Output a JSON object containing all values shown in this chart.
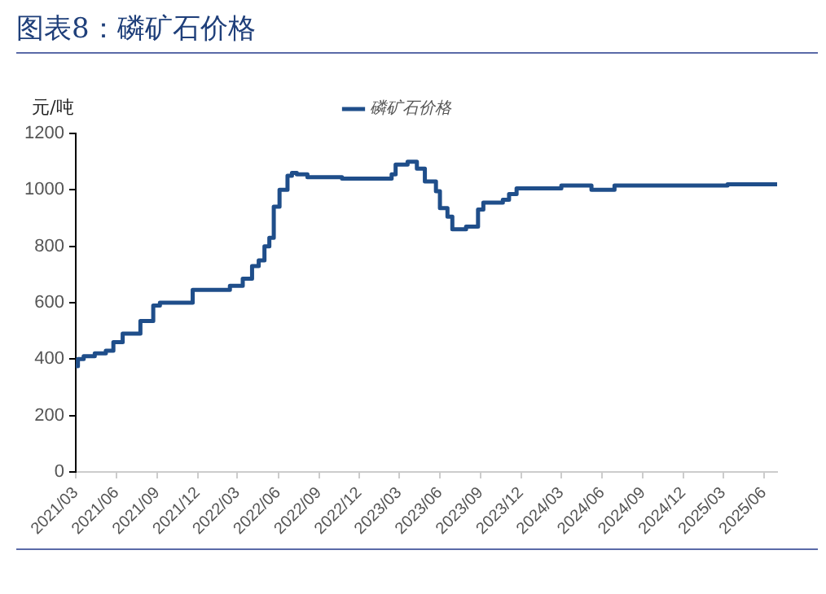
{
  "chart_data": {
    "type": "step",
    "title": "图表8：磷矿石价格",
    "ylabel": "元/吨",
    "legend": "top",
    "xlim": [
      "2021-03-01",
      "2025-07-01"
    ],
    "xticks": [
      {
        "value": "2021-03",
        "label": "2021/03"
      },
      {
        "value": "2021-06",
        "label": "2021/06"
      },
      {
        "value": "2021-09",
        "label": "2021/09"
      },
      {
        "value": "2021-12",
        "label": "2021/12"
      },
      {
        "value": "2022-03",
        "label": "2022/03"
      },
      {
        "value": "2022-06",
        "label": "2022/06"
      },
      {
        "value": "2022-09",
        "label": "2022/09"
      },
      {
        "value": "2022-12",
        "label": "2022/12"
      },
      {
        "value": "2023-03",
        "label": "2023/03"
      },
      {
        "value": "2023-06",
        "label": "2023/06"
      },
      {
        "value": "2023-09",
        "label": "2023/09"
      },
      {
        "value": "2023-12",
        "label": "2023/12"
      },
      {
        "value": "2024-03",
        "label": "2024/03"
      },
      {
        "value": "2024-06",
        "label": "2024/06"
      },
      {
        "value": "2024-09",
        "label": "2024/09"
      },
      {
        "value": "2024-12",
        "label": "2024/12"
      },
      {
        "value": "2025-03",
        "label": "2025/03"
      },
      {
        "value": "2025-06",
        "label": "2025/06"
      }
    ],
    "ylim": [
      0,
      1200
    ],
    "yticks": [
      0,
      200,
      400,
      600,
      800,
      1000,
      1200
    ],
    "grid": false,
    "x": [
      "2021-03-01",
      "2021-03-06",
      "2021-03-19",
      "2021-04-13",
      "2021-05-08",
      "2021-05-25",
      "2021-06-15",
      "2021-07-25",
      "2021-08-23",
      "2021-09-07",
      "2021-11-20",
      "2022-02-12",
      "2022-03-13",
      "2022-04-03",
      "2022-04-18",
      "2022-05-01",
      "2022-05-12",
      "2022-05-22",
      "2022-06-04",
      "2022-06-22",
      "2022-07-02",
      "2022-07-13",
      "2022-08-06",
      "2022-10-23",
      "2023-02-12",
      "2023-02-21",
      "2023-03-20",
      "2023-04-10",
      "2023-04-28",
      "2023-05-23",
      "2023-06-01",
      "2023-06-18",
      "2023-06-29",
      "2023-07-30",
      "2023-08-26",
      "2023-09-07",
      "2023-10-21",
      "2023-11-04",
      "2023-11-21",
      "2024-03-01",
      "2024-05-08",
      "2024-06-29",
      "2025-03-11",
      "2025-07-01"
    ],
    "series": [
      {
        "name": "磷矿石价格",
        "color": "#1f4e8a",
        "values": [
          375,
          400,
          410,
          420,
          430,
          460,
          490,
          535,
          590,
          600,
          645,
          660,
          685,
          730,
          750,
          800,
          830,
          940,
          1000,
          1050,
          1060,
          1055,
          1045,
          1040,
          1055,
          1090,
          1100,
          1075,
          1030,
          995,
          935,
          905,
          860,
          870,
          930,
          955,
          965,
          985,
          1005,
          1015,
          1000,
          1015,
          1020,
          1020
        ]
      }
    ]
  }
}
